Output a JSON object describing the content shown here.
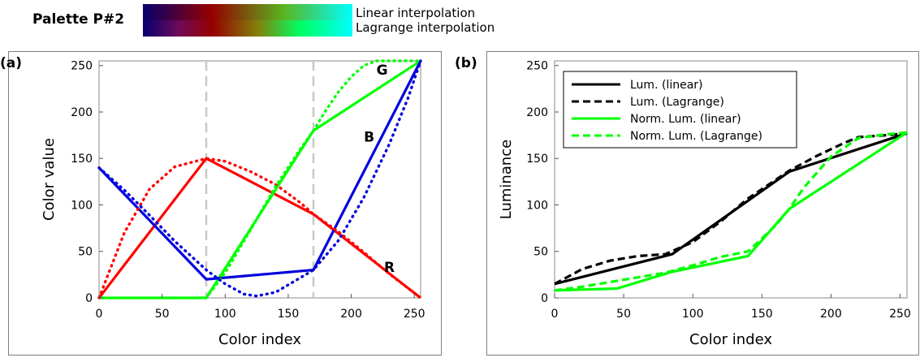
{
  "palette": {
    "title": "Palette P#2",
    "rows": [
      {
        "label": "Linear interpolation"
      },
      {
        "label": "Lagrange interpolation"
      }
    ]
  },
  "colors": {
    "red": "#ff0000",
    "green": "#00ff00",
    "blue": "#0000dd",
    "black": "#000000",
    "guide": "#c8c8c8",
    "frame": "#808080"
  },
  "chart_data": [
    {
      "panel": "(a)",
      "type": "line",
      "xlabel": "Color index",
      "ylabel": "Color value",
      "xlim": [
        0,
        255
      ],
      "ylim": [
        0,
        255
      ],
      "xticks": [
        0,
        50,
        100,
        150,
        200,
        250
      ],
      "yticks": [
        0,
        50,
        100,
        150,
        200,
        250
      ],
      "guides_x": [
        85,
        170
      ],
      "series": [
        {
          "name": "R",
          "interp": "linear",
          "color": "red",
          "style": "solid",
          "x": [
            0,
            85,
            170,
            255
          ],
          "y": [
            0,
            150,
            90,
            0
          ]
        },
        {
          "name": "G",
          "interp": "linear",
          "color": "green",
          "style": "solid",
          "x": [
            0,
            85,
            170,
            255
          ],
          "y": [
            0,
            0,
            180,
            255
          ]
        },
        {
          "name": "B",
          "interp": "linear",
          "color": "blue",
          "style": "solid",
          "x": [
            0,
            85,
            170,
            255
          ],
          "y": [
            140,
            20,
            30,
            255
          ]
        },
        {
          "name": "R",
          "interp": "lagrange",
          "color": "red",
          "style": "dotted",
          "x": [
            0,
            20,
            40,
            60,
            85,
            100,
            120,
            140,
            160,
            170,
            190,
            210,
            230,
            255
          ],
          "y": [
            0,
            70,
            117,
            141,
            150,
            147,
            136,
            122,
            102,
            90,
            71,
            49,
            26,
            0
          ]
        },
        {
          "name": "G",
          "interp": "lagrange",
          "color": "green",
          "style": "dotted",
          "x": [
            85,
            100,
            120,
            140,
            160,
            170,
            180,
            190,
            200,
            210,
            220,
            255
          ],
          "y": [
            0,
            27,
            73,
            120,
            161,
            180,
            202,
            222,
            238,
            250,
            255,
            255
          ]
        },
        {
          "name": "B",
          "interp": "lagrange",
          "color": "blue",
          "style": "dotted",
          "x": [
            0,
            20,
            40,
            60,
            85,
            100,
            115,
            125,
            140,
            160,
            170,
            190,
            210,
            230,
            245,
            255
          ],
          "y": [
            140,
            116,
            89,
            61,
            30,
            15,
            4,
            2,
            6,
            22,
            30,
            62,
            108,
            165,
            215,
            255
          ]
        }
      ],
      "labels": [
        {
          "text": "G",
          "x": 220,
          "y": 240
        },
        {
          "text": "B",
          "x": 210,
          "y": 168
        },
        {
          "text": "R",
          "x": 226,
          "y": 28
        }
      ]
    },
    {
      "panel": "(b)",
      "type": "line",
      "xlabel": "Color index",
      "ylabel": "Luminance",
      "xlim": [
        0,
        255
      ],
      "ylim": [
        0,
        255
      ],
      "xticks": [
        0,
        50,
        100,
        150,
        200,
        250
      ],
      "yticks": [
        0,
        50,
        100,
        150,
        200,
        250
      ],
      "legend_position": "top-left",
      "series": [
        {
          "name": "Lum. (linear)",
          "color": "black",
          "style": "solid",
          "x": [
            0,
            85,
            170,
            255
          ],
          "y": [
            15,
            47,
            136,
            177
          ]
        },
        {
          "name": "Lum. (Lagrange)",
          "color": "black",
          "style": "dashed",
          "x": [
            0,
            20,
            40,
            60,
            80,
            100,
            120,
            140,
            160,
            170,
            190,
            210,
            220,
            240,
            255
          ],
          "y": [
            15,
            31,
            40,
            45,
            47,
            60,
            82,
            107,
            127,
            137,
            153,
            167,
            173,
            175,
            177
          ]
        },
        {
          "name": "Norm. Lum. (linear)",
          "color": "green",
          "style": "solid",
          "x": [
            0,
            45,
            85,
            140,
            170,
            255
          ],
          "y": [
            8,
            10,
            28,
            45,
            96,
            178
          ]
        },
        {
          "name": "Norm. Lum. (Lagrange)",
          "color": "green",
          "style": "dashed",
          "x": [
            0,
            20,
            40,
            60,
            80,
            100,
            120,
            140,
            160,
            170,
            180,
            200,
            220,
            240,
            255
          ],
          "y": [
            8,
            12,
            17,
            22,
            27,
            35,
            44,
            50,
            78,
            96,
            118,
            152,
            172,
            176,
            178
          ]
        }
      ]
    }
  ]
}
